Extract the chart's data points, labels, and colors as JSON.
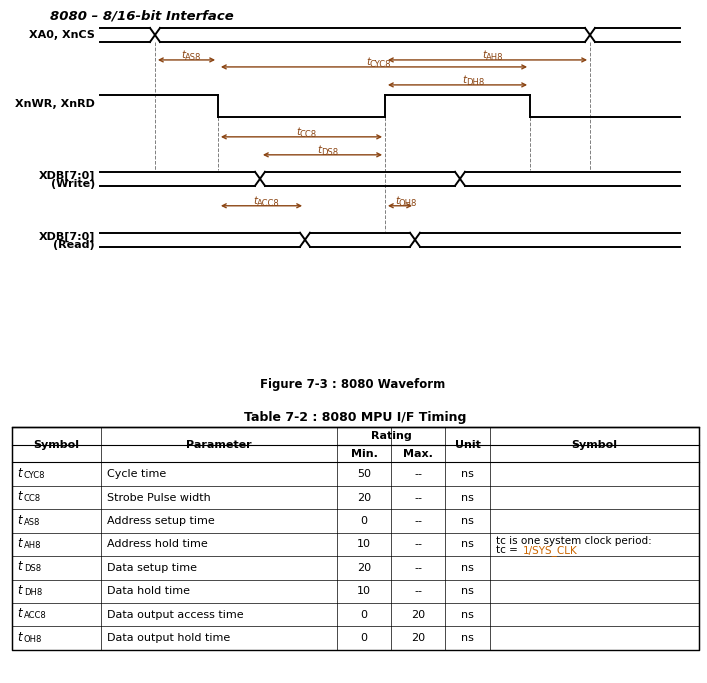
{
  "title": "8080 – 8/16-bit Interface",
  "figure_caption": "Figure 7-3 : 8080 Waveform",
  "table_title": "Table 7-2 : 8080 MPU I/F Timing",
  "table_rows": [
    [
      "CYC8",
      "Cycle time",
      "50",
      "--",
      "ns",
      ""
    ],
    [
      "CC8",
      "Strobe Pulse width",
      "20",
      "--",
      "ns",
      ""
    ],
    [
      "AS8",
      "Address setup time",
      "0",
      "--",
      "ns",
      ""
    ],
    [
      "AH8",
      "Address hold time",
      "10",
      "--",
      "ns",
      "tc is one system clock period:\ntc = 1/SYS_CLK"
    ],
    [
      "DS8",
      "Data setup time",
      "20",
      "--",
      "ns",
      ""
    ],
    [
      "DH8",
      "Data hold time",
      "10",
      "--",
      "ns",
      ""
    ],
    [
      "ACC8",
      "Data output access time",
      "0",
      "20",
      "ns",
      ""
    ],
    [
      "OH8",
      "Data output hold time",
      "0",
      "20",
      "ns",
      ""
    ]
  ],
  "bg_color": "#ffffff",
  "timing_color": "#8B4513",
  "note_color": "#CC6600"
}
